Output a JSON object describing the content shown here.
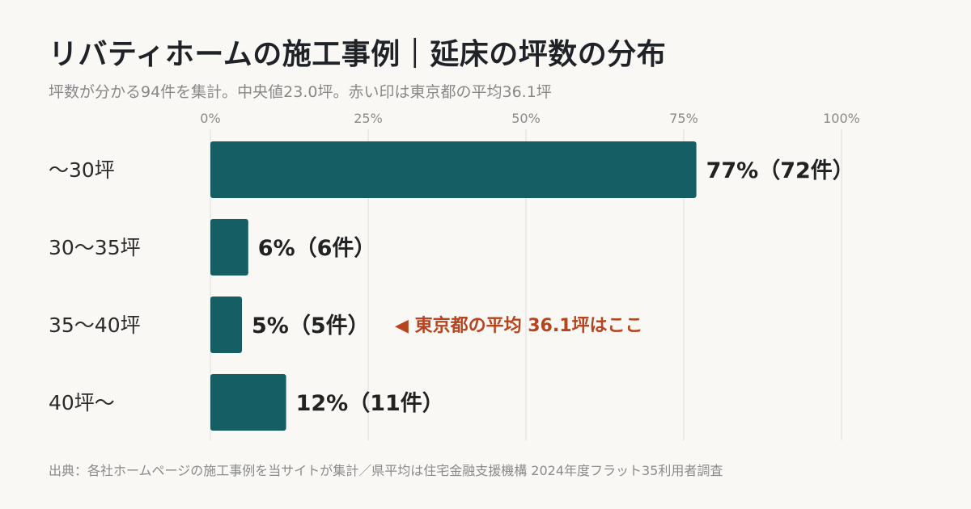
{
  "title": "リバティホームの施工事例｜延床の坪数の分布",
  "subtitle": "坪数が分かる94件を集計。中央値23.0坪。赤い印は東京都の平均36.1坪",
  "source": "出典：各社ホームページの施工事例を当サイトが集計／県平均は住宅金融支援機構 2024年度フラット35利用者調査",
  "colors": {
    "bar": "#155e63",
    "annotation": "#b5441f",
    "grid": "#dddddd",
    "background": "#f9f8f5"
  },
  "chart_data": {
    "type": "bar",
    "orientation": "horizontal",
    "categories": [
      "〜30坪",
      "30〜35坪",
      "35〜40坪",
      "40坪〜"
    ],
    "values": [
      77,
      6,
      5,
      12
    ],
    "counts": [
      72,
      6,
      5,
      11
    ],
    "value_labels": [
      "77%（72件）",
      "6%（6件）",
      "5%（5件）",
      "12%（11件）"
    ],
    "xlim": [
      0,
      100
    ],
    "xticks": [
      0,
      25,
      50,
      75,
      100
    ],
    "xtick_labels": [
      "0%",
      "25%",
      "50%",
      "75%",
      "100%"
    ],
    "grid": true,
    "annotation": {
      "category": "35〜40坪",
      "text": "◀ 東京都の平均 36.1坪はここ"
    }
  }
}
